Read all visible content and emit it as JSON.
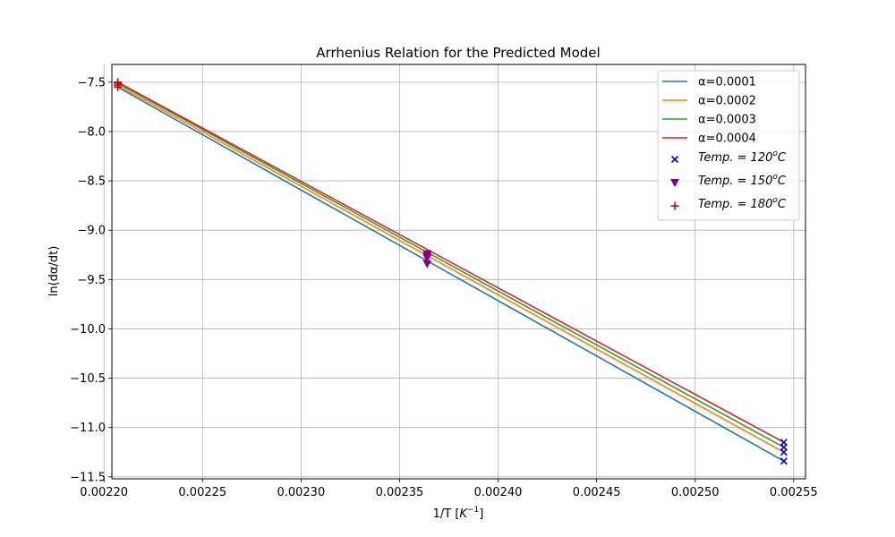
{
  "chart_data": {
    "type": "line",
    "title": "Arrhenius Relation for the Predicted Model",
    "xlabel_main": "1/T [",
    "xlabel_sym": "K",
    "xlabel_sup": "−1",
    "xlabel_end": "]",
    "ylabel": "ln(dα/dt)",
    "xlim": [
      0.002204,
      0.002556
    ],
    "ylim": [
      -11.52,
      -7.32
    ],
    "x_ticks": [
      0.0022,
      0.00225,
      0.0023,
      0.00235,
      0.0024,
      0.00245,
      0.0025,
      0.00255
    ],
    "x_tick_labels": [
      "0.00220",
      "0.00225",
      "0.00230",
      "0.00235",
      "0.00240",
      "0.00245",
      "0.00250",
      "0.00255"
    ],
    "y_ticks": [
      -11.5,
      -11.0,
      -10.5,
      -10.0,
      -9.5,
      -9.0,
      -8.5,
      -8.0,
      -7.5
    ],
    "y_tick_labels": [
      "−11.5",
      "−11.0",
      "−10.5",
      "−10.0",
      "−9.5",
      "−9.0",
      "−8.5",
      "−8.0",
      "−7.5"
    ],
    "grid": true,
    "legend_position": "top-right",
    "line_series": [
      {
        "name": "α=0.0001",
        "color": "#1f77b4",
        "x": [
          0.002207,
          0.002545
        ],
        "y": [
          -7.55,
          -11.34
        ]
      },
      {
        "name": "α=0.0002",
        "color": "#ff7f0e",
        "x": [
          0.002207,
          0.002545
        ],
        "y": [
          -7.53,
          -11.25
        ]
      },
      {
        "name": "α=0.0003",
        "color": "#2ca02c",
        "x": [
          0.002207,
          0.002545
        ],
        "y": [
          -7.51,
          -11.2
        ]
      },
      {
        "name": "α=0.0004",
        "color": "#d62728",
        "x": [
          0.002207,
          0.002545
        ],
        "y": [
          -7.5,
          -11.15
        ]
      }
    ],
    "scatter_series": [
      {
        "prefix": "Temp. = 120",
        "sup": "o",
        "unit": "C",
        "marker": "x",
        "color": "#0000cc",
        "x": [
          0.002545,
          0.002545,
          0.002545,
          0.002545
        ],
        "y": [
          -11.34,
          -11.25,
          -11.2,
          -11.15
        ]
      },
      {
        "prefix": "Temp. = 150",
        "sup": "o",
        "unit": "C",
        "marker": "triangle-down",
        "color": "#800080",
        "x": [
          0.002364,
          0.002364,
          0.002364,
          0.002364
        ],
        "y": [
          -9.34,
          -9.28,
          -9.26,
          -9.24
        ]
      },
      {
        "prefix": "Temp. = 180",
        "sup": "o",
        "unit": "C",
        "marker": "plus",
        "color": "#cc0000",
        "x": [
          0.002207,
          0.002207,
          0.002207,
          0.002207
        ],
        "y": [
          -7.55,
          -7.53,
          -7.51,
          -7.5
        ]
      }
    ]
  }
}
